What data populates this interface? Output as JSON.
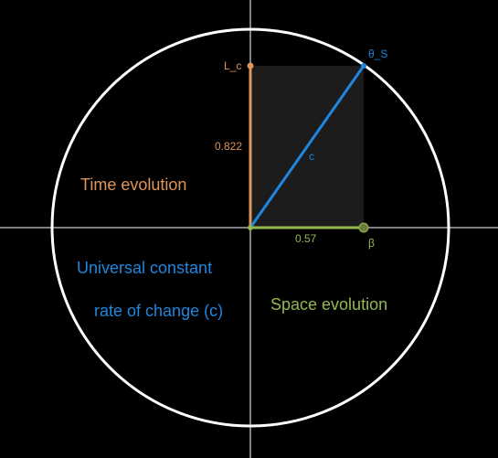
{
  "colors": {
    "background": "#000000",
    "axes": "#ffffff",
    "circle": "#ffffff",
    "time": "#e0955a",
    "space": "#94b84e",
    "constant": "#1f86de",
    "rectangle_fill": "#1c1c1c"
  },
  "diagram": {
    "time_value": "0.822",
    "space_value": "0.57",
    "hypotenuse_label": "c",
    "top_point_label": "L_c",
    "corner_point_label": "θ_S",
    "right_point_label": "β"
  },
  "labels": {
    "time_evolution": "Time evolution",
    "space_evolution": "Space evolution",
    "constant_line1": "Universal constant",
    "constant_line2": "rate of change (c)"
  }
}
